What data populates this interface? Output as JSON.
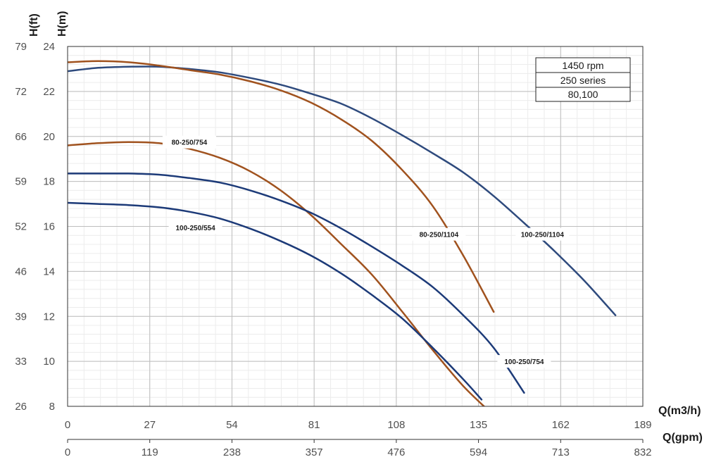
{
  "chart_data": {
    "type": "line",
    "title": "",
    "legend_box": [
      "1450 rpm",
      "250 series",
      "80,100"
    ],
    "legend_placement": "top-right",
    "grid": true,
    "x_axis": {
      "label": "Q(m3/h)",
      "range": [
        0,
        189
      ],
      "ticks": [
        0,
        27,
        54,
        81,
        108,
        135,
        162,
        189
      ],
      "tick_labels": [
        "0",
        "27",
        "54",
        "81",
        "108",
        "135",
        "162",
        "189"
      ]
    },
    "x2_axis": {
      "label": "Q(gpm)",
      "tick_labels": [
        "0",
        "119",
        "238",
        "357",
        "476",
        "594",
        "713",
        "832"
      ]
    },
    "y_axis": {
      "label": "H(m)",
      "range": [
        8,
        24
      ],
      "ticks": [
        8,
        10,
        12,
        14,
        16,
        18,
        20,
        22,
        24
      ],
      "tick_labels": [
        "8",
        "10",
        "12",
        "14",
        "16",
        "18",
        "20",
        "22",
        "24"
      ]
    },
    "y2_axis": {
      "label": "H(ft)",
      "tick_labels": [
        "26",
        "33",
        "39",
        "46",
        "52",
        "59",
        "66",
        "72",
        "79"
      ]
    },
    "series": [
      {
        "name": "100-250/1104",
        "color": "#2e4a7d",
        "x": [
          0,
          10,
          20,
          30,
          40,
          50,
          60,
          70,
          80,
          90,
          100,
          110,
          120,
          130,
          140,
          150,
          160,
          170,
          180
        ],
        "y": [
          22.9,
          23.05,
          23.1,
          23.1,
          23.0,
          22.85,
          22.6,
          22.3,
          21.9,
          21.45,
          20.8,
          20.05,
          19.25,
          18.4,
          17.35,
          16.15,
          14.9,
          13.55,
          12.05
        ]
      },
      {
        "name": "80-250/1104",
        "color": "#a0521e",
        "x": [
          0,
          10,
          20,
          30,
          40,
          50,
          60,
          70,
          80,
          90,
          100,
          110,
          120,
          130,
          140
        ],
        "y": [
          23.3,
          23.35,
          23.3,
          23.15,
          22.95,
          22.75,
          22.45,
          22.05,
          21.5,
          20.75,
          19.8,
          18.5,
          16.9,
          14.7,
          12.2
        ]
      },
      {
        "name": "80-250/754",
        "color": "#a0521e",
        "x": [
          0,
          10,
          20,
          30,
          40,
          50,
          60,
          70,
          80,
          90,
          100,
          110,
          120,
          130,
          140
        ],
        "y": [
          19.6,
          19.7,
          19.75,
          19.7,
          19.45,
          19.05,
          18.45,
          17.6,
          16.5,
          15.2,
          13.85,
          12.2,
          10.5,
          8.9,
          7.6
        ]
      },
      {
        "name": "100-250/754",
        "color": "#1c3a78",
        "x": [
          0,
          10,
          20,
          30,
          40,
          50,
          60,
          70,
          80,
          90,
          100,
          110,
          120,
          130,
          140,
          150
        ],
        "y": [
          18.35,
          18.35,
          18.35,
          18.3,
          18.15,
          17.95,
          17.6,
          17.15,
          16.6,
          15.9,
          15.1,
          14.25,
          13.3,
          12.05,
          10.6,
          8.6
        ]
      },
      {
        "name": "100-250/554",
        "color": "#1c3a78",
        "x": [
          0,
          10,
          20,
          30,
          40,
          50,
          60,
          70,
          80,
          90,
          100,
          110,
          120,
          130,
          136
        ],
        "y": [
          17.05,
          17.0,
          16.95,
          16.85,
          16.65,
          16.35,
          15.9,
          15.35,
          14.7,
          13.9,
          12.95,
          11.9,
          10.6,
          9.2,
          8.3
        ]
      }
    ]
  }
}
